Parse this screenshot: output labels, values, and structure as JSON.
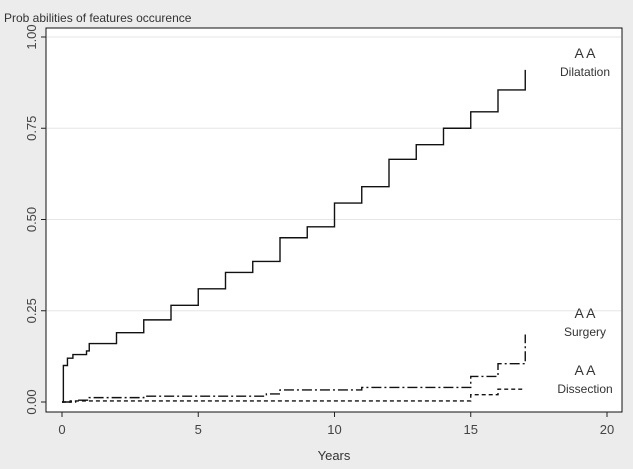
{
  "chart_data": {
    "type": "line",
    "title": "Prob abilities of features occurence",
    "xlabel": "Years",
    "ylabel": "",
    "xlim": [
      0,
      20
    ],
    "ylim": [
      0,
      1.0
    ],
    "x_ticks": [
      "0",
      "5",
      "10",
      "15",
      "20"
    ],
    "y_ticks": [
      "0.00",
      "0.25",
      "0.50",
      "0.75",
      "1.00"
    ],
    "grid": "horizontal",
    "series": [
      {
        "line_style": "solid",
        "label_lines": [
          "A A",
          "Dilatation"
        ],
        "steps": [
          [
            0,
            0
          ],
          [
            0.05,
            0.1
          ],
          [
            0.2,
            0.12
          ],
          [
            0.4,
            0.13
          ],
          [
            0.9,
            0.14
          ],
          [
            1.0,
            0.16
          ],
          [
            2,
            0.19
          ],
          [
            3,
            0.225
          ],
          [
            4,
            0.265
          ],
          [
            5,
            0.31
          ],
          [
            6,
            0.355
          ],
          [
            7,
            0.385
          ],
          [
            8,
            0.45
          ],
          [
            9,
            0.48
          ],
          [
            10,
            0.545
          ],
          [
            11,
            0.59
          ],
          [
            12,
            0.665
          ],
          [
            13,
            0.705
          ],
          [
            14,
            0.75
          ],
          [
            15,
            0.795
          ],
          [
            16,
            0.855
          ],
          [
            17,
            0.91
          ]
        ]
      },
      {
        "line_style": "dash-dot",
        "label_lines": [
          "A A",
          "Surgery"
        ],
        "steps": [
          [
            0,
            0
          ],
          [
            0.5,
            0.005
          ],
          [
            1,
            0.012
          ],
          [
            3,
            0.016
          ],
          [
            7.5,
            0.022
          ],
          [
            8,
            0.033
          ],
          [
            11,
            0.04
          ],
          [
            15,
            0.07
          ],
          [
            16,
            0.105
          ],
          [
            17,
            0.185
          ]
        ]
      },
      {
        "line_style": "dashed",
        "label_lines": [
          "A A",
          "Dissection"
        ],
        "steps": [
          [
            0,
            0
          ],
          [
            0.3,
            0.003
          ],
          [
            15,
            0.02
          ],
          [
            16,
            0.035
          ],
          [
            17,
            0.035
          ]
        ]
      }
    ],
    "colors": {
      "background": "#ececec",
      "plot_area": "#ffffff",
      "line": "#111111",
      "grid": "#e6e6e6"
    }
  }
}
